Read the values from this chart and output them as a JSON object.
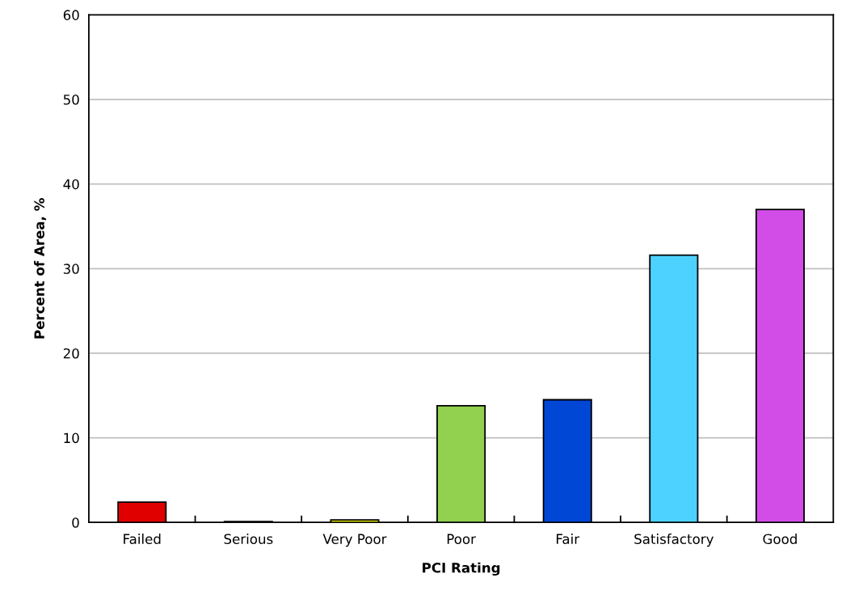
{
  "chart_data": {
    "type": "bar",
    "xlabel": "PCI Rating",
    "ylabel": "Percent of Area, %",
    "categories": [
      "Failed",
      "Serious",
      "Very Poor",
      "Poor",
      "Fair",
      "Satisfactory",
      "Good"
    ],
    "values": [
      2.4,
      0.1,
      0.3,
      13.8,
      14.5,
      31.6,
      37.0
    ],
    "colors": [
      "#e00000",
      "#ff8c00",
      "#ffff00",
      "#92d050",
      "#0047d6",
      "#4dd2ff",
      "#d24de8"
    ],
    "ylim": [
      0,
      60
    ],
    "yticks": [
      0,
      10,
      20,
      30,
      40,
      50,
      60
    ],
    "grid": "y"
  }
}
